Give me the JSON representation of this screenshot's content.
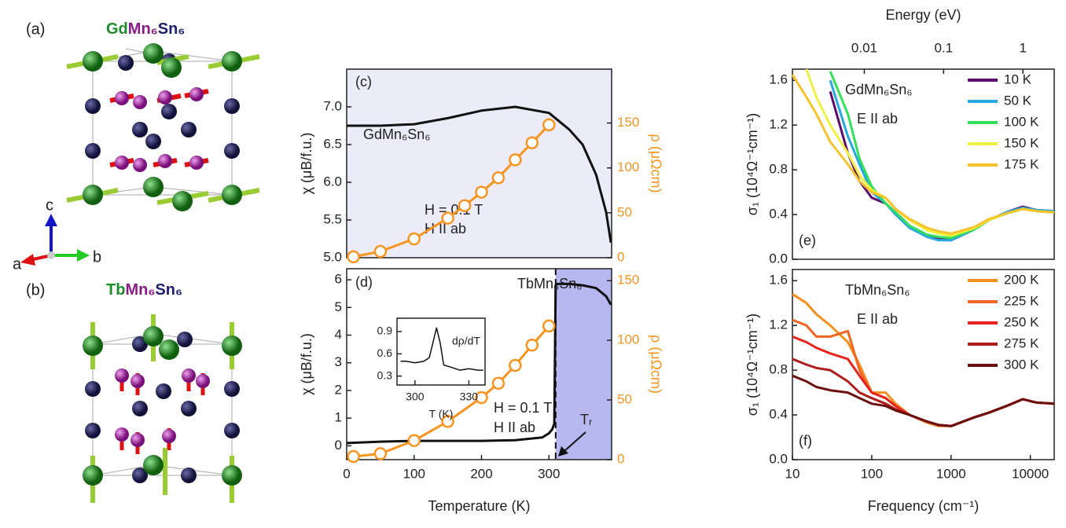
{
  "structures": [
    {
      "label": "(a)",
      "formula": [
        "Gd",
        "Mn₆",
        "Sn₆"
      ]
    },
    {
      "label": "(b)",
      "formula": [
        "Tb",
        "Mn₆",
        "Sn₆"
      ]
    }
  ],
  "axis_labels": [
    "a",
    "b",
    "c"
  ],
  "chart_data": [
    {
      "type": "line",
      "panel_label": "(c)",
      "ylabel": "χ (μB/f.u.)",
      "y2label": "ρ (μΩcm)",
      "y2color": "#f7941d",
      "xlim": [
        0,
        393
      ],
      "ylim": [
        5.0,
        7.5
      ],
      "yticks": [
        {
          "value": 5,
          "label": "5.0"
        },
        5.5,
        {
          "value": 6,
          "label": "6.0"
        },
        6.5,
        {
          "value": 7,
          "label": "7.0"
        }
      ],
      "y2lim": [
        0,
        210
      ],
      "y2ticks": [
        0,
        50,
        100,
        150
      ],
      "annotations": [
        "GdMn₆Sn₆",
        "H = 0.1 T",
        "H II ab"
      ],
      "series": [
        {
          "color": "#111111",
          "x": [
            0,
            50,
            100,
            150,
            200,
            250,
            300,
            330,
            350,
            370,
            385,
            392
          ],
          "values": [
            6.75,
            6.75,
            6.77,
            6.85,
            6.95,
            7.0,
            6.92,
            6.7,
            6.5,
            6.1,
            5.6,
            5.2
          ]
        },
        {
          "color": "#f7941d",
          "axis": "y2",
          "marker": "circle",
          "x": [
            10,
            50,
            100,
            150,
            175,
            200,
            225,
            250,
            275,
            300
          ],
          "values": [
            1,
            7,
            21,
            44,
            58,
            73,
            89,
            109,
            128,
            148
          ]
        }
      ]
    },
    {
      "type": "line",
      "panel_label": "(d)",
      "ylabel": "χ (μB/f.u.)",
      "y2label": "ρ (μΩcm)",
      "xlabel": "Temperature (K)",
      "y2color": "#f7941d",
      "xlim": [
        0,
        393
      ],
      "xticks": [
        0,
        100,
        200,
        300
      ],
      "ylim": [
        -0.5,
        6.4
      ],
      "yticks": [
        0,
        1,
        2,
        3,
        4,
        5,
        6
      ],
      "y2lim": [
        0,
        160
      ],
      "y2ticks": [
        0,
        50,
        100,
        150
      ],
      "highlight_x": [
        310,
        393
      ],
      "annotations": [
        "TbMn₆Sn₆",
        "H = 0.1 T",
        "H II ab",
        "Tᵣ"
      ],
      "series": [
        {
          "color": "#111111",
          "x": [
            0,
            50,
            100,
            150,
            200,
            250,
            290,
            300,
            305,
            308,
            310,
            312,
            330,
            350,
            370,
            385,
            392
          ],
          "values": [
            0.1,
            0.15,
            0.18,
            0.18,
            0.18,
            0.2,
            0.3,
            0.45,
            0.6,
            0.8,
            5.8,
            5.85,
            5.85,
            5.8,
            5.7,
            5.4,
            5.1
          ]
        },
        {
          "color": "#f7941d",
          "axis": "y2",
          "marker": "circle",
          "x": [
            10,
            50,
            100,
            150,
            200,
            225,
            250,
            275,
            300
          ],
          "values": [
            2.6,
            5,
            16,
            32,
            52,
            64,
            79,
            96,
            112
          ]
        }
      ],
      "inset": {
        "type": "line",
        "label": "dρ/dT",
        "xlabel": "T (K)",
        "xlim": [
          290,
          339
        ],
        "xticks": [
          300,
          330
        ],
        "ylim": [
          0.18,
          1.08
        ],
        "yticks": [
          0.3,
          0.6,
          0.9
        ],
        "series": [
          {
            "color": "#111111",
            "x": [
              292,
              295,
              300,
              305,
              308,
              310,
              312,
              314,
              316,
              320,
              325,
              330,
              335,
              338
            ],
            "values": [
              0.5,
              0.5,
              0.48,
              0.5,
              0.55,
              0.75,
              0.95,
              0.75,
              0.45,
              0.42,
              0.38,
              0.4,
              0.38,
              0.38
            ]
          }
        ]
      }
    },
    {
      "type": "line",
      "panel_label": "(e)",
      "ylabel": "σ₁ (10⁴Ω⁻¹cm⁻¹)",
      "x2label": "Energy (eV)",
      "xscale": "log",
      "legend": "upper right",
      "xlim": [
        10,
        20000
      ],
      "x2lim": [
        0.00124,
        2.48
      ],
      "x2ticks": [
        0.01,
        0.1,
        1
      ],
      "ylim": [
        0,
        1.7
      ],
      "yticks": [
        {
          "value": 0,
          "label": "0.0"
        },
        0.4,
        0.8,
        1.2,
        1.6
      ],
      "annotations": [
        "GdMn₆Sn₆",
        "E II ab"
      ],
      "x": [
        10,
        15,
        20,
        30,
        50,
        70,
        100,
        150,
        200,
        300,
        500,
        700,
        1000,
        2000,
        3000,
        5000,
        8000,
        12000,
        20000
      ],
      "series": [
        {
          "name": "10 K",
          "color": "#5b0a6e",
          "values": [
            null,
            null,
            null,
            1.5,
            0.95,
            0.7,
            0.55,
            0.5,
            0.42,
            0.3,
            0.2,
            0.18,
            0.17,
            0.27,
            0.35,
            0.42,
            0.47,
            0.44,
            0.43
          ]
        },
        {
          "name": "50 K",
          "color": "#26a9e0",
          "values": [
            null,
            null,
            null,
            1.6,
            1.1,
            0.85,
            0.6,
            0.5,
            0.4,
            0.28,
            0.2,
            0.17,
            0.17,
            0.27,
            0.35,
            0.42,
            0.46,
            0.44,
            0.43
          ]
        },
        {
          "name": "100 K",
          "color": "#33e05a",
          "values": [
            null,
            null,
            null,
            1.68,
            1.3,
            0.9,
            0.65,
            0.5,
            0.42,
            0.3,
            0.22,
            0.2,
            0.19,
            0.27,
            0.35,
            0.41,
            0.45,
            0.43,
            0.42
          ]
        },
        {
          "name": "150 K",
          "color": "#f0f040",
          "values": [
            null,
            1.7,
            1.45,
            1.2,
            0.95,
            0.75,
            0.62,
            0.55,
            0.45,
            0.35,
            0.26,
            0.23,
            0.21,
            0.28,
            0.35,
            0.41,
            0.45,
            0.43,
            0.42
          ]
        },
        {
          "name": "175 K",
          "color": "#f7c22a",
          "values": [
            1.65,
            1.45,
            1.3,
            1.05,
            0.85,
            0.7,
            0.6,
            0.55,
            0.45,
            0.36,
            0.28,
            0.25,
            0.23,
            0.29,
            0.36,
            0.41,
            0.45,
            0.43,
            0.42
          ]
        }
      ]
    },
    {
      "type": "line",
      "panel_label": "(f)",
      "ylabel": "σ₁ (10⁴Ω⁻¹cm⁻¹)",
      "xlabel": "Frequency (cm⁻¹)",
      "xscale": "log",
      "legend": "upper right",
      "xlim": [
        10,
        20000
      ],
      "xticks": [
        10,
        100,
        1000,
        10000
      ],
      "ylim": [
        0,
        1.7
      ],
      "yticks": [
        {
          "value": 0,
          "label": "0.0"
        },
        0.4,
        0.8,
        1.2,
        1.6
      ],
      "annotations": [
        "TbMn₆Sn₆",
        "E II ab"
      ],
      "x": [
        10,
        15,
        20,
        30,
        50,
        70,
        100,
        150,
        200,
        300,
        500,
        700,
        1000,
        2000,
        3000,
        5000,
        8000,
        12000,
        20000
      ],
      "series": [
        {
          "name": "200 K",
          "color": "#f4901e",
          "values": [
            1.48,
            1.4,
            1.3,
            1.2,
            1.05,
            0.85,
            0.6,
            0.6,
            0.5,
            0.4,
            0.33,
            0.3,
            0.3,
            0.38,
            0.42,
            0.48,
            0.54,
            0.51,
            0.5
          ]
        },
        {
          "name": "225 K",
          "color": "#f26522",
          "values": [
            1.25,
            1.2,
            1.1,
            1.1,
            1.15,
            0.8,
            0.6,
            0.55,
            0.48,
            0.4,
            0.34,
            0.31,
            0.3,
            0.38,
            0.42,
            0.48,
            0.54,
            0.51,
            0.5
          ]
        },
        {
          "name": "250 K",
          "color": "#e8221d",
          "values": [
            1.1,
            1.05,
            1.0,
            0.95,
            0.9,
            0.75,
            0.6,
            0.55,
            0.48,
            0.4,
            0.34,
            0.31,
            0.3,
            0.38,
            0.42,
            0.48,
            0.54,
            0.51,
            0.5
          ]
        },
        {
          "name": "275 K",
          "color": "#b01c1c",
          "values": [
            0.9,
            0.85,
            0.82,
            0.8,
            0.7,
            0.6,
            0.55,
            0.5,
            0.45,
            0.4,
            0.34,
            0.31,
            0.3,
            0.38,
            0.42,
            0.48,
            0.54,
            0.51,
            0.5
          ]
        },
        {
          "name": "300 K",
          "color": "#6b0f0f",
          "values": [
            0.75,
            0.7,
            0.65,
            0.62,
            0.6,
            0.55,
            0.5,
            0.48,
            0.44,
            0.4,
            0.34,
            0.31,
            0.3,
            0.38,
            0.42,
            0.48,
            0.54,
            0.51,
            0.5
          ]
        }
      ]
    }
  ]
}
